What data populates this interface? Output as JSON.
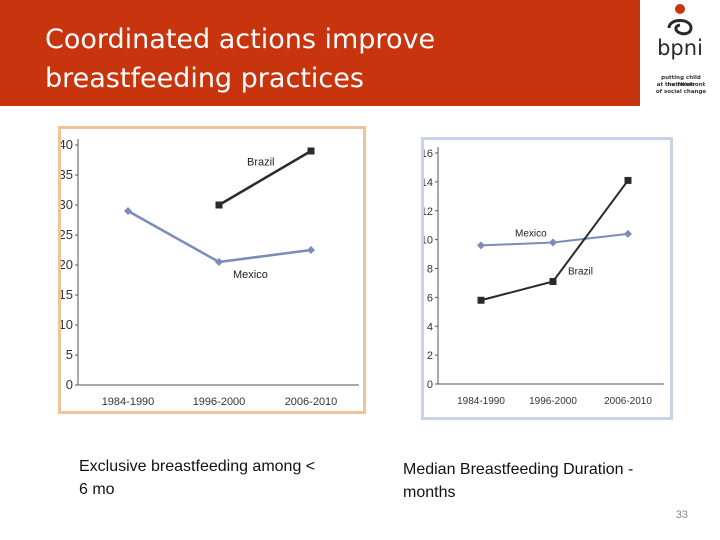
{
  "slide": {
    "title_line1": "Coordinated actions improve",
    "title_line2": "breastfeeding practices",
    "page_number": "33"
  },
  "logo": {
    "name": "bpni",
    "tagline_line1": "putting child nutrition",
    "tagline_line2": "at the forefront",
    "tagline_line3": "of social change"
  },
  "colors": {
    "header": "#c8340e",
    "brazil_line": "#2a2a2a",
    "mexico_line": "#7b8cb8",
    "chart1_border": "#f0c49a",
    "chart2_border": "#c9d3e6"
  },
  "chart_data": [
    {
      "type": "line",
      "title": "",
      "caption_line1": "Exclusive breastfeeding among <",
      "caption_line2": "6 mo",
      "categories": [
        "1984-1990",
        "1996-2000",
        "2006-2010"
      ],
      "yticks": [
        "0",
        "5",
        "10",
        "15",
        "20",
        "25",
        "30",
        "35",
        "40"
      ],
      "ylim": [
        0,
        40
      ],
      "series": [
        {
          "name": "Brazil",
          "values": [
            null,
            30,
            39
          ]
        },
        {
          "name": "Mexico",
          "values": [
            29,
            20.5,
            22.5
          ]
        }
      ],
      "grid": false
    },
    {
      "type": "line",
      "title": "",
      "caption_line1": "Median Breastfeeding Duration -",
      "caption_line2": "months",
      "categories": [
        "1984-1990",
        "1996-2000",
        "2006-2010"
      ],
      "yticks": [
        "0",
        "2",
        "4",
        "6",
        "8",
        "10",
        "12",
        "14",
        "16"
      ],
      "ylim": [
        0,
        16
      ],
      "series": [
        {
          "name": "Mexico",
          "values": [
            9.6,
            9.8,
            10.4
          ]
        },
        {
          "name": "Brazil",
          "values": [
            5.8,
            7.1,
            14.1
          ]
        }
      ],
      "grid": false
    }
  ]
}
